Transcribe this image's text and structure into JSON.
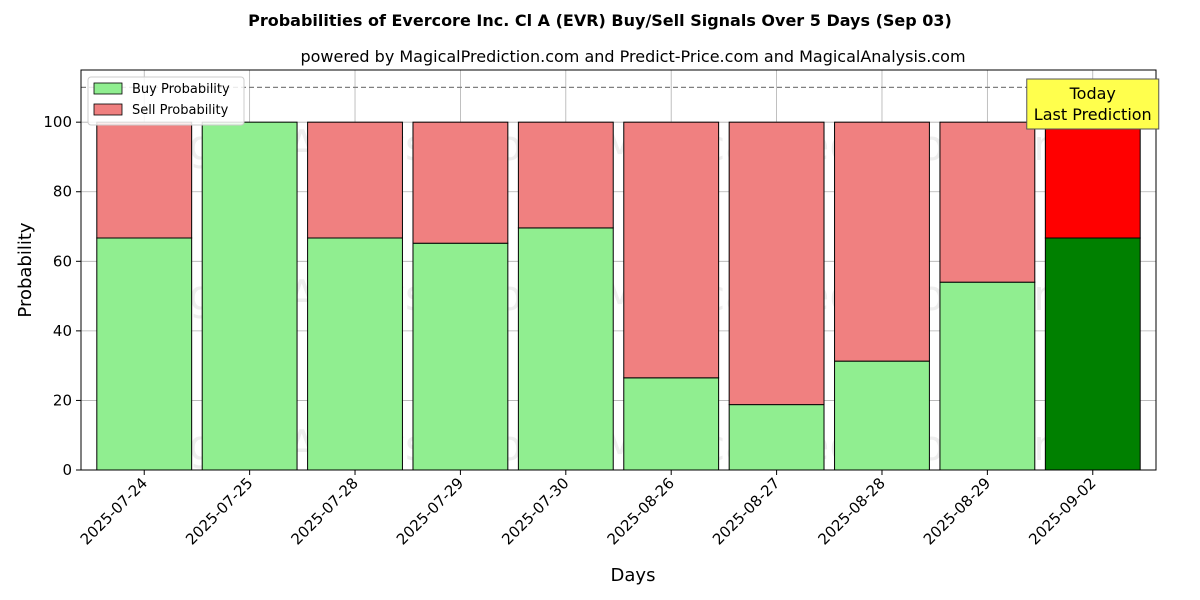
{
  "chart_data": {
    "type": "bar",
    "stacked": true,
    "title": "Probabilities of Evercore Inc. Cl A (EVR) Buy/Sell Signals Over 5 Days (Sep 03)",
    "subtitle": "powered by MagicalPrediction.com and Predict-Price.com and MagicalAnalysis.com",
    "xlabel": "Days",
    "ylabel": "Probability",
    "ylim": [
      0,
      115
    ],
    "yticks": [
      0,
      20,
      40,
      60,
      80,
      100
    ],
    "reference_line": 110,
    "grid": true,
    "legend_position": "top-left",
    "categories": [
      "2025-07-24",
      "2025-07-25",
      "2025-07-28",
      "2025-07-29",
      "2025-07-30",
      "2025-08-26",
      "2025-08-27",
      "2025-08-28",
      "2025-08-29",
      "2025-09-02"
    ],
    "series": [
      {
        "name": "Buy Probability",
        "color": "#90ee90",
        "highlight_color": "#008000",
        "values": [
          66.7,
          100,
          66.7,
          65.2,
          69.6,
          26.5,
          18.8,
          31.3,
          54.0,
          66.7
        ]
      },
      {
        "name": "Sell Probability",
        "color": "#f08080",
        "highlight_color": "#ff0000",
        "values": [
          33.3,
          0,
          33.3,
          34.8,
          30.4,
          73.5,
          81.2,
          68.7,
          46.0,
          33.3
        ]
      }
    ],
    "highlight_index": 9,
    "annotation": {
      "lines": [
        "Today",
        "Last Prediction"
      ],
      "color": "#ffff4d"
    },
    "watermarks": [
      "MagicalAnalysis.com",
      "MagicalPrediction.com"
    ]
  }
}
